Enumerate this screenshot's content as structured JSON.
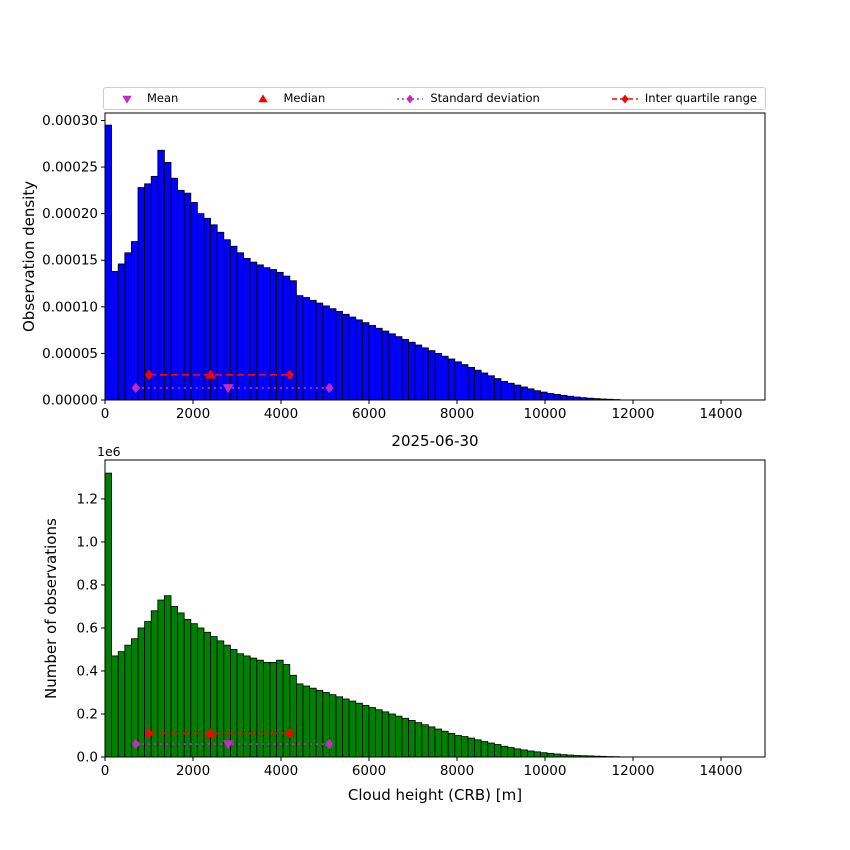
{
  "title": "2025-06-30",
  "xlabel": "Cloud height (CRB) [m]",
  "legend": {
    "items": [
      {
        "key": "mean",
        "label": "Mean",
        "marker": "triangle-down",
        "color": "#c42ac4",
        "line": "none"
      },
      {
        "key": "median",
        "label": "Median",
        "marker": "triangle-up",
        "color": "#ff0000",
        "line": "none"
      },
      {
        "key": "std",
        "label": "Standard deviation",
        "marker": "diamond",
        "color": "#c42ac4",
        "line": "dotted"
      },
      {
        "key": "iqr",
        "label": "Inter quartile range",
        "marker": "diamond",
        "color": "#ff0000",
        "line": "dashed"
      }
    ]
  },
  "stats": {
    "mean": 2800,
    "median": 2400,
    "std_range": [
      700,
      5100
    ],
    "iqr_range": [
      1000,
      4200
    ]
  },
  "chart_data": [
    {
      "type": "bar",
      "name": "density-histogram",
      "ylabel": "Observation density",
      "y_value_unit": "1e-6",
      "bar_color": "#0000ff",
      "edge_color": "#000000",
      "bin_start": 0,
      "bin_width": 150,
      "xlim": [
        0,
        15000
      ],
      "ylim": [
        0,
        308
      ],
      "xticks": [
        0,
        2000,
        4000,
        6000,
        8000,
        10000,
        12000,
        14000
      ],
      "xtick_labels": [
        "0",
        "2000",
        "4000",
        "6000",
        "8000",
        "10000",
        "12000",
        "14000"
      ],
      "yticks": [
        0,
        50,
        100,
        150,
        200,
        250,
        300
      ],
      "ytick_labels": [
        "0.00000",
        "0.00005",
        "0.00010",
        "0.00015",
        "0.00020",
        "0.00025",
        "0.00030"
      ],
      "marker_lines": {
        "iqr_y": 27,
        "std_y": 13
      },
      "values": [
        295,
        138,
        146,
        158,
        170,
        228,
        232,
        240,
        268,
        255,
        238,
        225,
        222,
        212,
        200,
        195,
        188,
        180,
        172,
        165,
        158,
        152,
        148,
        145,
        142,
        140,
        137,
        133,
        128,
        112,
        110,
        107,
        104,
        101,
        98,
        95,
        92,
        89,
        86,
        83,
        80,
        77,
        74,
        71,
        68,
        65,
        62,
        59,
        56,
        53,
        50,
        47,
        44,
        41,
        38,
        35,
        32,
        29,
        26,
        23,
        20,
        18,
        16,
        14,
        12,
        10,
        8.5,
        7,
        6,
        5,
        4,
        3.2,
        2.5,
        2,
        1.5,
        1.1,
        0.8,
        0.5
      ]
    },
    {
      "type": "bar",
      "name": "count-histogram",
      "ylabel": "Number of observations",
      "y_value_unit": "1e6",
      "offset_label": "1e6",
      "bar_color": "#008000",
      "edge_color": "#000000",
      "bin_start": 0,
      "bin_width": 150,
      "xlim": [
        0,
        15000
      ],
      "ylim": [
        0,
        1.381
      ],
      "xticks": [
        0,
        2000,
        4000,
        6000,
        8000,
        10000,
        12000,
        14000
      ],
      "xtick_labels": [
        "0",
        "2000",
        "4000",
        "6000",
        "8000",
        "10000",
        "12000",
        "14000"
      ],
      "yticks": [
        0,
        0.2,
        0.4,
        0.6,
        0.8,
        1.0,
        1.2
      ],
      "ytick_labels": [
        "0.0",
        "0.2",
        "0.4",
        "0.6",
        "0.8",
        "1.0",
        "1.2"
      ],
      "marker_lines": {
        "iqr_y": 0.11,
        "std_y": 0.06
      },
      "values": [
        1.32,
        0.47,
        0.49,
        0.52,
        0.55,
        0.6,
        0.63,
        0.68,
        0.73,
        0.75,
        0.7,
        0.67,
        0.64,
        0.62,
        0.6,
        0.58,
        0.56,
        0.54,
        0.52,
        0.5,
        0.48,
        0.47,
        0.46,
        0.45,
        0.44,
        0.44,
        0.45,
        0.43,
        0.38,
        0.34,
        0.33,
        0.32,
        0.31,
        0.3,
        0.29,
        0.28,
        0.27,
        0.26,
        0.25,
        0.24,
        0.23,
        0.22,
        0.21,
        0.2,
        0.19,
        0.18,
        0.17,
        0.16,
        0.15,
        0.14,
        0.13,
        0.12,
        0.11,
        0.1,
        0.095,
        0.088,
        0.08,
        0.072,
        0.065,
        0.058,
        0.05,
        0.044,
        0.038,
        0.033,
        0.028,
        0.024,
        0.02,
        0.017,
        0.014,
        0.011,
        0.009,
        0.007,
        0.006,
        0.005,
        0.004,
        0.003,
        0.002,
        0.0015
      ]
    }
  ]
}
